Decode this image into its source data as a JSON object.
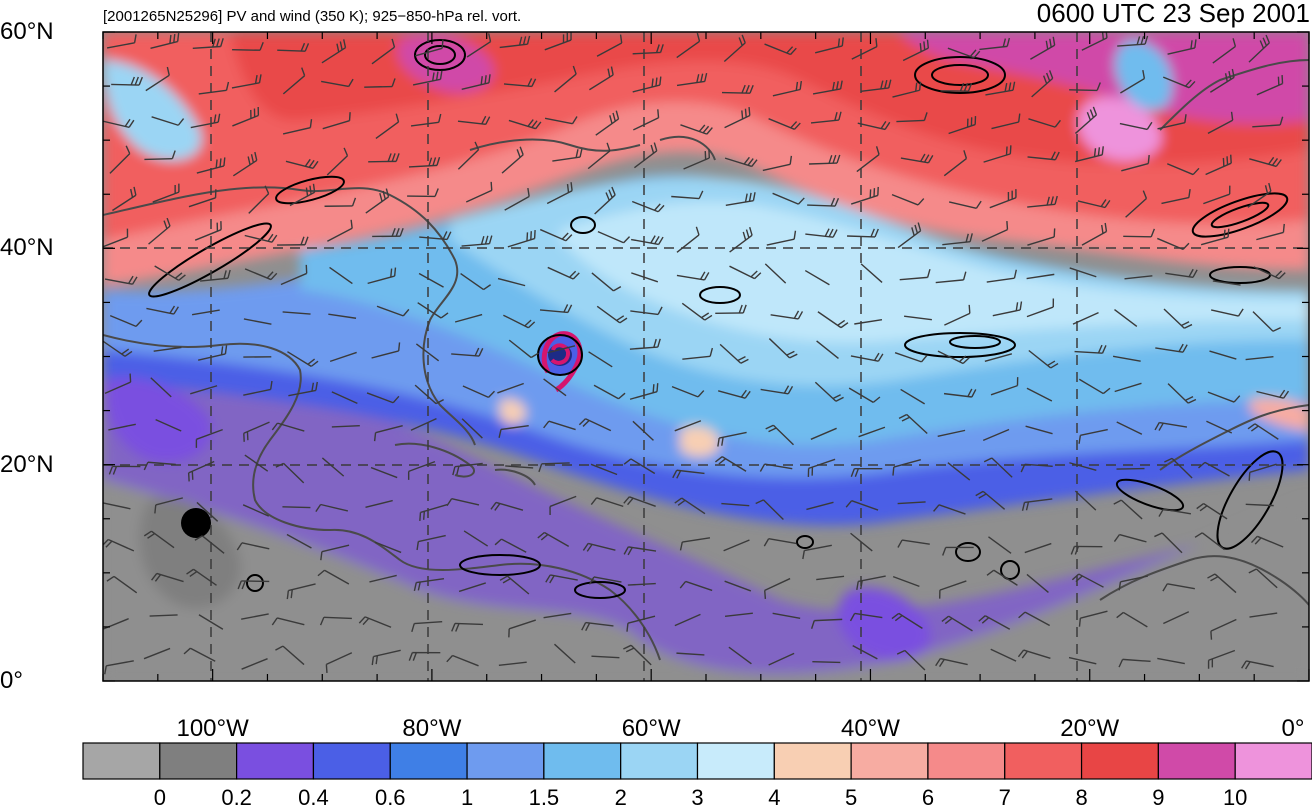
{
  "header": {
    "left_title": "[2001265N25296] PV and wind (350 K); 925−850-hPa rel. vort.",
    "right_title": "0600 UTC 23 Sep 2001"
  },
  "map": {
    "lon_range": [
      -110,
      0
    ],
    "lat_range": [
      0,
      60
    ],
    "lat_labels": [
      {
        "lat": 60,
        "text": "60°N"
      },
      {
        "lat": 40,
        "text": "40°N"
      },
      {
        "lat": 20,
        "text": "20°N"
      },
      {
        "lat": 0,
        "text": "0°"
      }
    ],
    "lon_labels": [
      {
        "lon": -100,
        "text": "100°W"
      },
      {
        "lon": -80,
        "text": "80°W"
      },
      {
        "lon": -60,
        "text": "60°W"
      },
      {
        "lon": -40,
        "text": "40°W"
      },
      {
        "lon": -20,
        "text": "20°W"
      },
      {
        "lon": 0,
        "text": "0°"
      }
    ],
    "storm_center": {
      "lon": -67.5,
      "lat": 30.5
    },
    "storm_color": "#d6156e"
  },
  "colorbar": {
    "colors": [
      "#a6a6a6",
      "#7f7f7f",
      "#7a4fe0",
      "#4b5fe6",
      "#3f7fe6",
      "#6e9bef",
      "#6fbcee",
      "#9bd5f4",
      "#c8ebfb",
      "#f8cfb3",
      "#f7aca2",
      "#f58a8a",
      "#f15f5f",
      "#e84545",
      "#d04aa8",
      "#ee93dc"
    ],
    "labels": [
      "0",
      "0.2",
      "0.4",
      "0.6",
      "1",
      "1.5",
      "2",
      "3",
      "4",
      "5",
      "6",
      "7",
      "8",
      "9",
      "10"
    ]
  }
}
